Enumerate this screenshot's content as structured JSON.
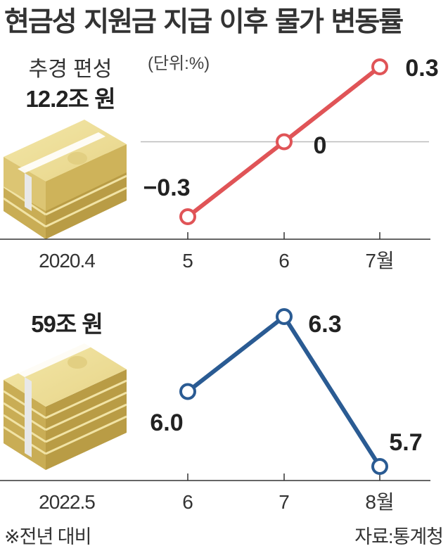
{
  "title": "현금성 지원금 지급 이후 물가 변동률",
  "unit_note": "(단위:%)",
  "footnote": "※전년 대비",
  "source": "자료:통계청",
  "colors": {
    "top_series": "#e05457",
    "bottom_series": "#2a5b93",
    "axis": "#333333",
    "grid": "#bbbbbb"
  },
  "chart_data": [
    {
      "type": "line",
      "budget_label": "추경 편성",
      "budget_amount": "12.2조 원",
      "period_label": "2020.4",
      "categories": [
        "5",
        "6",
        "7월"
      ],
      "values": [
        -0.3,
        0,
        0.3
      ],
      "value_labels": [
        "−0.3",
        "0",
        "0.3"
      ],
      "ylim": [
        -0.36,
        0.36
      ],
      "reference_line": 0
    },
    {
      "type": "line",
      "budget_amount": "59조 원",
      "period_label": "2022.5",
      "categories": [
        "6",
        "7",
        "8월"
      ],
      "values": [
        6.0,
        6.3,
        5.7
      ],
      "value_labels": [
        "6.0",
        "6.3",
        "5.7"
      ],
      "ylim": [
        5.65,
        6.35
      ]
    }
  ]
}
